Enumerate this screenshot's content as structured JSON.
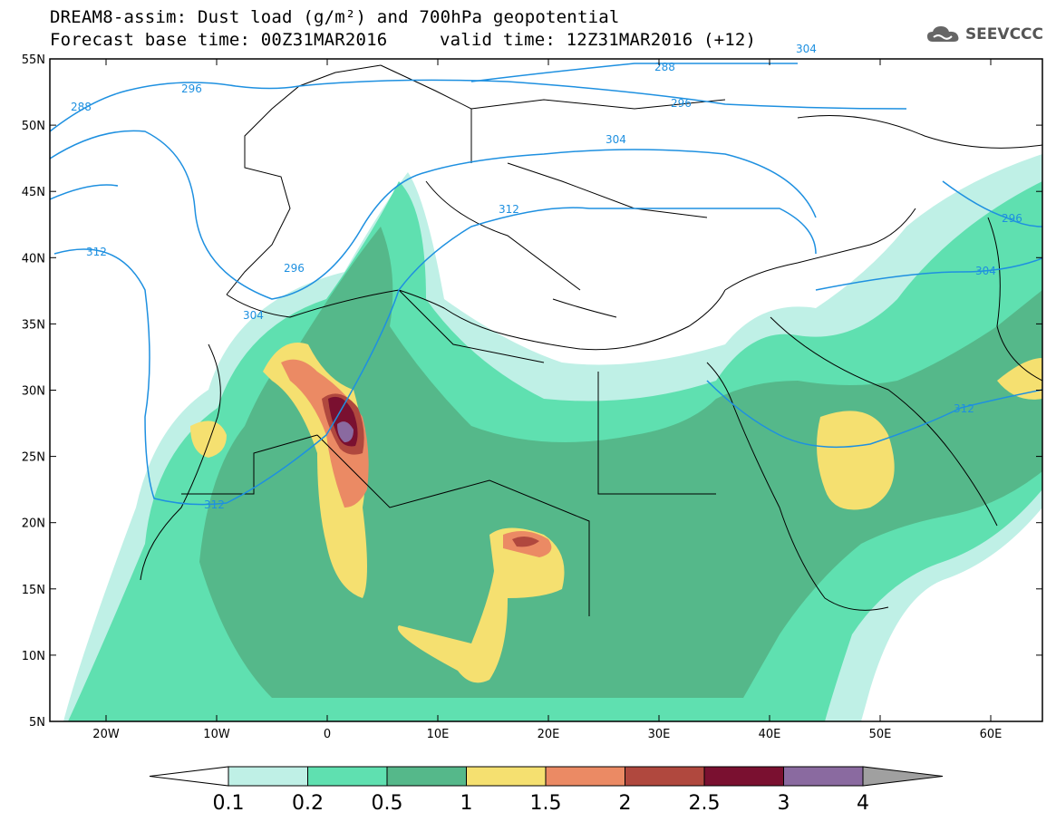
{
  "header": {
    "title_line1": "DREAM8-assim: Dust load (g/m²) and 700hPa geopotential",
    "title_line2a": "Forecast base time: 00Z31MAR2016",
    "title_line2b": "valid time: 12Z31MAR2016 (+12)",
    "brand": "SEEVCCC",
    "brand_icon": "cloud-icon"
  },
  "axes": {
    "lat_labels": [
      "55N",
      "50N",
      "45N",
      "40N",
      "35N",
      "30N",
      "25N",
      "20N",
      "15N",
      "10N",
      "5N"
    ],
    "lon_labels": [
      "20W",
      "10W",
      "0",
      "10E",
      "20E",
      "30E",
      "40E",
      "50E",
      "60E"
    ]
  },
  "contour_labels": {
    "values": [
      "288",
      "296",
      "304",
      "312",
      "288",
      "296",
      "304",
      "312",
      "296",
      "304",
      "312",
      "296",
      "304",
      "312"
    ]
  },
  "colorbar": {
    "ticks": [
      "0.1",
      "0.2",
      "0.5",
      "1",
      "1.5",
      "2",
      "2.5",
      "3",
      "4"
    ],
    "colors": [
      "#bff0e6",
      "#5fe0b0",
      "#55b88a",
      "#f5e070",
      "#eb8a64",
      "#b0483e",
      "#7a1030",
      "#8a6aa0"
    ],
    "low_color": "#ffffff",
    "high_color": "#a0a0a0"
  },
  "colors": {
    "geopotential": "#1e90e0",
    "border": "#000000"
  }
}
